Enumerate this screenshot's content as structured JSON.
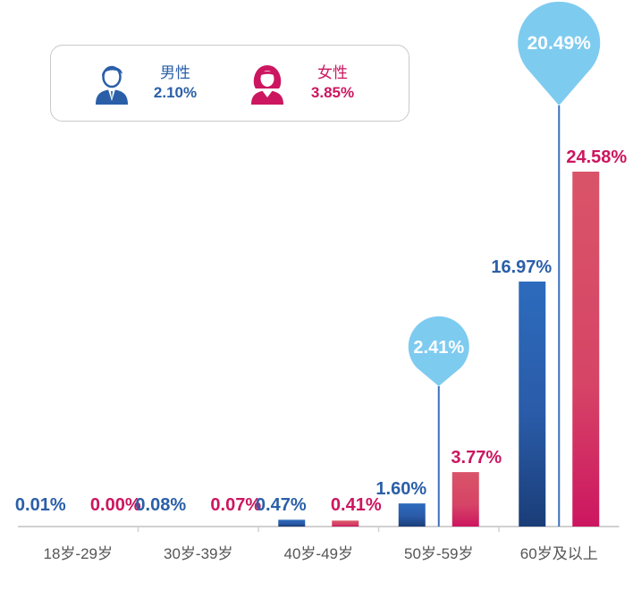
{
  "legend": {
    "male": {
      "label": "男性",
      "value": "2.10%",
      "icon": "male-user-icon",
      "color": "#2a5fa8"
    },
    "female": {
      "label": "女性",
      "value": "3.85%",
      "icon": "female-user-icon",
      "color": "#cc1660"
    }
  },
  "chart_data": {
    "type": "bar",
    "categories": [
      "18岁-29岁",
      "30岁-39岁",
      "40岁-49岁",
      "50岁-59岁",
      "60岁及以上"
    ],
    "series": [
      {
        "name": "男性",
        "values": [
          0.01,
          0.08,
          0.47,
          1.6,
          16.97
        ],
        "labels": [
          "0.01%",
          "0.08%",
          "0.47%",
          "1.60%",
          "16.97%"
        ],
        "color": "#2a5fa8"
      },
      {
        "name": "女性",
        "values": [
          0.0,
          0.07,
          0.41,
          3.77,
          24.58
        ],
        "labels": [
          "0.00%",
          "0.07%",
          "0.41%",
          "3.77%",
          "24.58%"
        ],
        "color": "#cc1660"
      }
    ],
    "callouts": [
      {
        "category": "50岁-59岁",
        "label": "2.41%",
        "value": 2.41
      },
      {
        "category": "60岁及以上",
        "label": "20.49%",
        "value": 20.49
      }
    ],
    "callout_color": "#7ecbf0",
    "ylim": [
      0,
      24.58
    ],
    "grid": false,
    "legend_position": "top-left"
  }
}
